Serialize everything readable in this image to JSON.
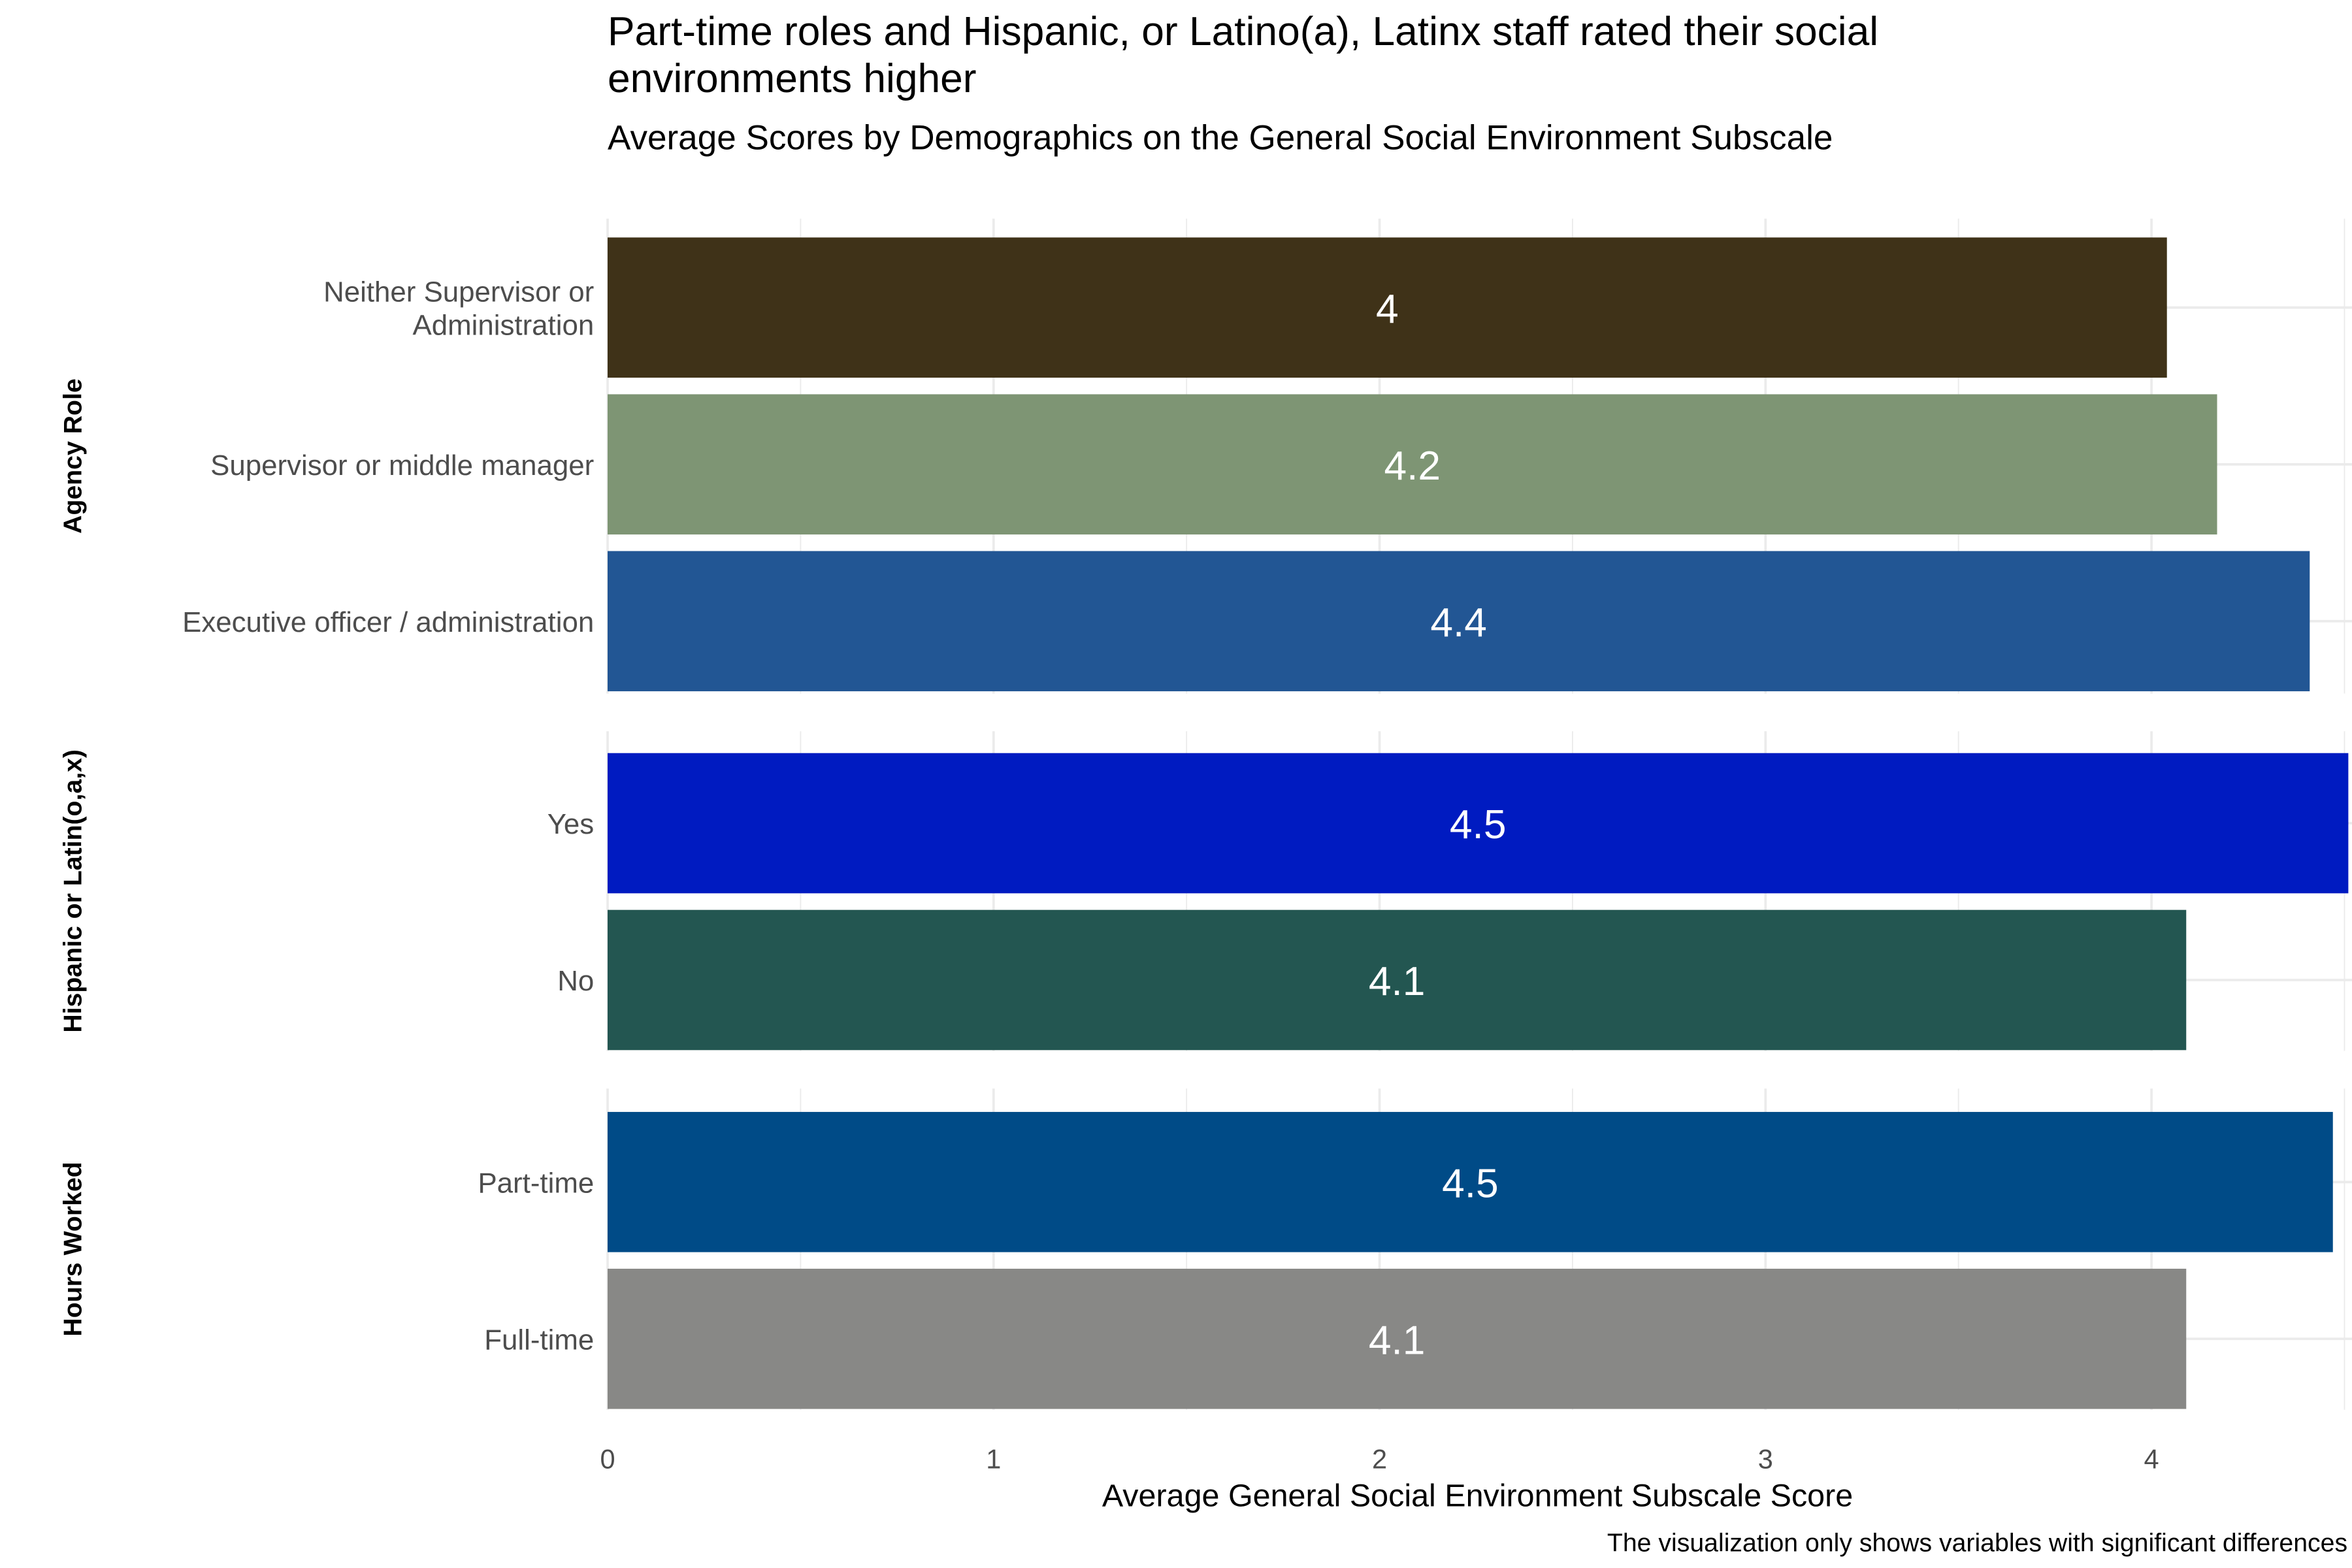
{
  "chart_data": {
    "type": "bar",
    "orientation": "horizontal",
    "title": "Part-time roles and Hispanic, or Latino(a), Latinx staff rated their social environments higher",
    "subtitle": "Average Scores by Demographics on the General Social Environment Subscale",
    "xlabel": "Average General Social Environment Subscale Score",
    "caption": "The visualization only shows variables with significant differences",
    "xlim": [
      0,
      4.5
    ],
    "xticks": [
      "0",
      "1",
      "2",
      "3",
      "4"
    ],
    "grid": true,
    "facets": [
      {
        "name": "Agency Role",
        "bars": [
          {
            "category": "Neither Supervisor or\nAdministration",
            "value": 4.04,
            "label": "4",
            "color": "#3f3218"
          },
          {
            "category": "Supervisor or middle manager",
            "value": 4.17,
            "label": "4.2",
            "color": "#7e9574"
          },
          {
            "category": "Executive officer / administration",
            "value": 4.41,
            "label": "4.4",
            "color": "#225694"
          }
        ]
      },
      {
        "name": "Hispanic or Latin(o,a,x)",
        "bars": [
          {
            "category": "Yes",
            "value": 4.51,
            "label": "4.5",
            "color": "#001bc1"
          },
          {
            "category": "No",
            "value": 4.09,
            "label": "4.1",
            "color": "#235651"
          }
        ]
      },
      {
        "name": "Hours Worked",
        "bars": [
          {
            "category": "Part-time",
            "value": 4.47,
            "label": "4.5",
            "color": "#004b87"
          },
          {
            "category": "Full-time",
            "value": 4.09,
            "label": "4.1",
            "color": "#888886"
          }
        ]
      }
    ]
  }
}
